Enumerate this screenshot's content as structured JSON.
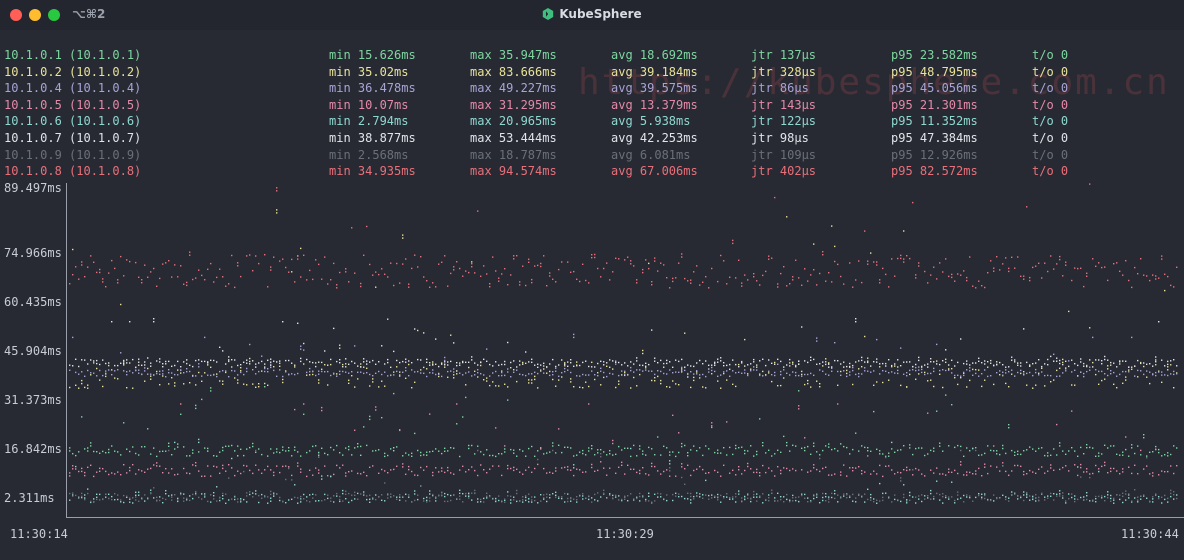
{
  "window": {
    "shortcut": "⌥⌘2",
    "title": "KubeSphere"
  },
  "stats": [
    {
      "host": "10.1.0.1 (10.1.0.1)",
      "min": "min 15.626ms",
      "max": "max 35.947ms",
      "avg": "avg 18.692ms",
      "jtr": "jtr 137µs",
      "p95": "p95 23.582ms",
      "to": "t/o 0",
      "color": "#7ed6a0"
    },
    {
      "host": "10.1.0.2 (10.1.0.2)",
      "min": "min 35.02ms",
      "max": "max 83.666ms",
      "avg": "avg 39.184ms",
      "jtr": "jtr 328µs",
      "p95": "p95 48.795ms",
      "to": "t/o 0",
      "color": "#e8e29a"
    },
    {
      "host": "10.1.0.4 (10.1.0.4)",
      "min": "min 36.478ms",
      "max": "max 49.227ms",
      "avg": "avg 39.575ms",
      "jtr": "jtr 86µs",
      "p95": "p95 45.056ms",
      "to": "t/o 0",
      "color": "#a9a3d6"
    },
    {
      "host": "10.1.0.5 (10.1.0.5)",
      "min": "min 10.07ms",
      "max": "max 31.295ms",
      "avg": "avg 13.379ms",
      "jtr": "jtr 143µs",
      "p95": "p95 21.301ms",
      "to": "t/o 0",
      "color": "#e48aa8"
    },
    {
      "host": "10.1.0.6 (10.1.0.6)",
      "min": "min 2.794ms",
      "max": "max 20.965ms",
      "avg": "avg 5.938ms",
      "jtr": "jtr 122µs",
      "p95": "p95 11.352ms",
      "to": "t/o 0",
      "color": "#8fd8d0"
    },
    {
      "host": "10.1.0.7 (10.1.0.7)",
      "min": "min 38.877ms",
      "max": "max 53.444ms",
      "avg": "avg 42.253ms",
      "jtr": "jtr 98µs",
      "p95": "p95 47.384ms",
      "to": "t/o 0",
      "color": "#e2e4ea"
    },
    {
      "host": "10.1.0.9 (10.1.0.9)",
      "min": "min 2.568ms",
      "max": "max 18.787ms",
      "avg": "avg 6.081ms",
      "jtr": "jtr 109µs",
      "p95": "p95 12.926ms",
      "to": "t/o 0",
      "color": "#6b6f78"
    },
    {
      "host": "10.1.0.8 (10.1.0.8)",
      "min": "min 34.935ms",
      "max": "max 94.574ms",
      "avg": "avg 67.006ms",
      "jtr": "jtr 402µs",
      "p95": "p95 82.572ms",
      "to": "t/o 0",
      "color": "#e8707a"
    }
  ],
  "watermark": "https://kubesphere.com.cn",
  "y_axis": {
    "labels": [
      "89.497ms",
      "74.966ms",
      "60.435ms",
      "45.904ms",
      "31.373ms",
      "16.842ms",
      "2.311ms"
    ]
  },
  "x_axis": {
    "labels": [
      "11:30:14",
      "11:30:29",
      "11:30:44"
    ]
  },
  "chart_data": {
    "type": "scatter",
    "x": [
      "11:30:14",
      "11:30:29",
      "11:30:44"
    ],
    "ylim": [
      2.311,
      89.497
    ],
    "series": [
      {
        "name": "10.1.0.1 (10.1.0.1)",
        "color": "#7ed6a0",
        "min": 15.626,
        "max": 35.947,
        "avg": 18.692
      },
      {
        "name": "10.1.0.2 (10.1.0.2)",
        "color": "#e8e29a",
        "min": 35.02,
        "max": 83.666,
        "avg": 39.184
      },
      {
        "name": "10.1.0.4 (10.1.0.4)",
        "color": "#a9a3d6",
        "min": 36.478,
        "max": 49.227,
        "avg": 39.575
      },
      {
        "name": "10.1.0.5 (10.1.0.5)",
        "color": "#e48aa8",
        "min": 10.07,
        "max": 31.295,
        "avg": 13.379
      },
      {
        "name": "10.1.0.6 (10.1.0.6)",
        "color": "#8fd8d0",
        "min": 2.794,
        "max": 20.965,
        "avg": 5.938
      },
      {
        "name": "10.1.0.7 (10.1.0.7)",
        "color": "#e2e4ea",
        "min": 38.877,
        "max": 53.444,
        "avg": 42.253
      },
      {
        "name": "10.1.0.9 (10.1.0.9)",
        "color": "#6b6f78",
        "min": 2.568,
        "max": 18.787,
        "avg": 6.081
      },
      {
        "name": "10.1.0.8 (10.1.0.8)",
        "color": "#e8707a",
        "min": 34.935,
        "max": 94.574,
        "avg": 67.006
      }
    ]
  }
}
